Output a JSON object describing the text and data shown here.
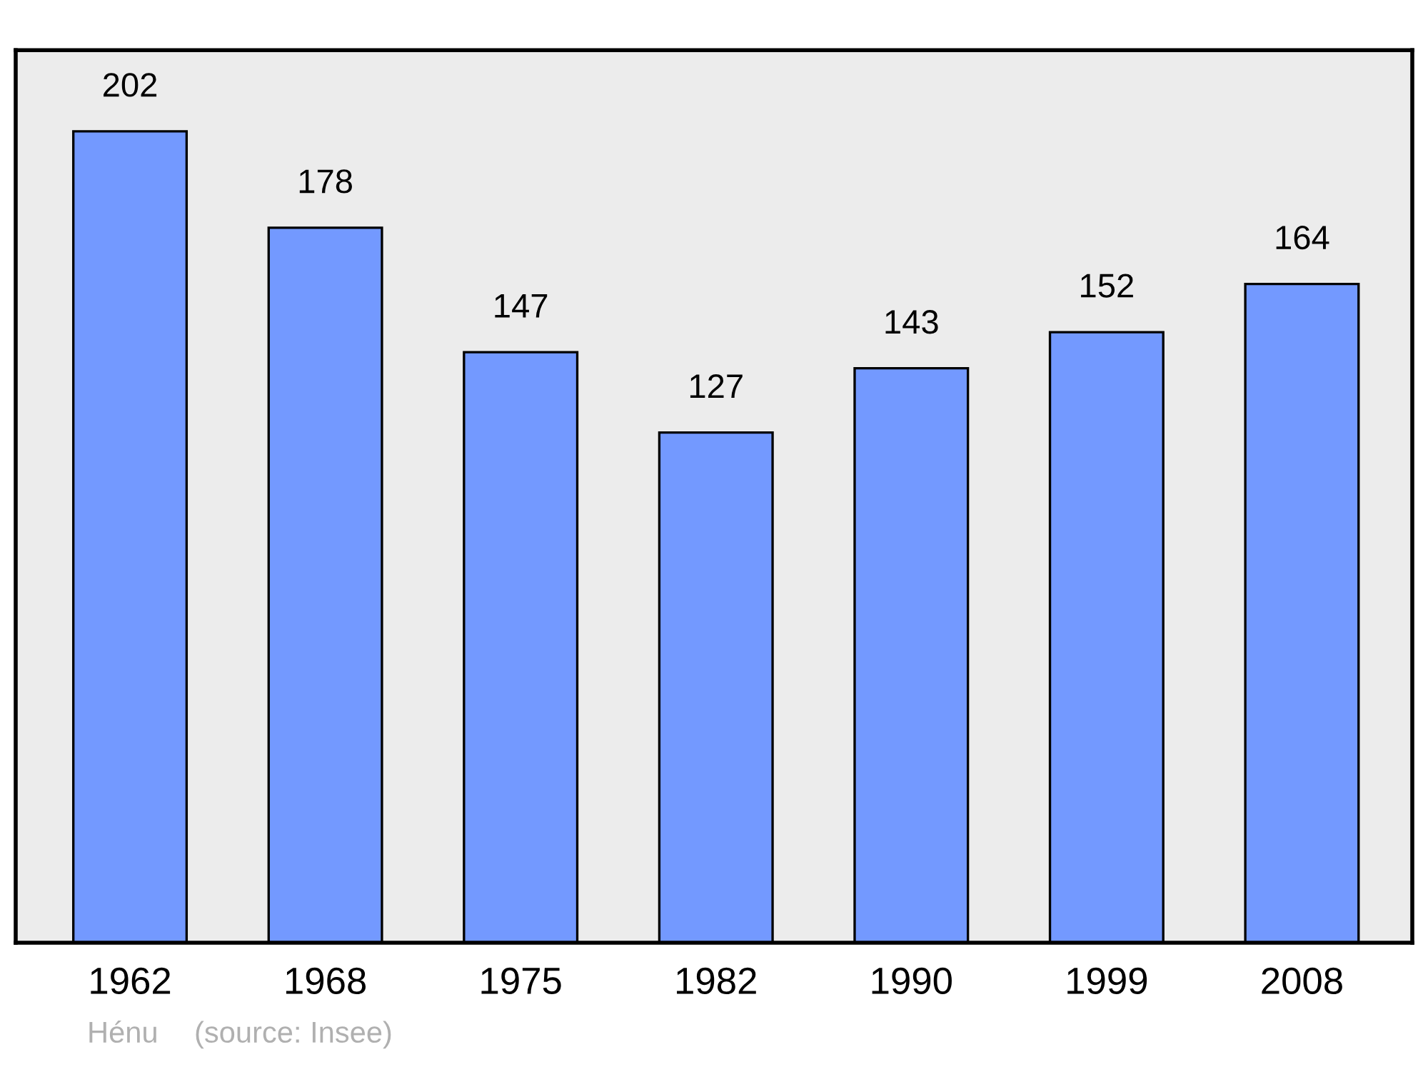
{
  "chart_data": {
    "type": "bar",
    "categories": [
      "1962",
      "1968",
      "1975",
      "1982",
      "1990",
      "1999",
      "2008"
    ],
    "values": [
      202,
      178,
      147,
      127,
      143,
      152,
      164
    ],
    "color": "#7399ff",
    "data_labels": true,
    "grid": false,
    "legend": false,
    "annotations": [
      "Hénu",
      "(source: Insee)"
    ]
  }
}
